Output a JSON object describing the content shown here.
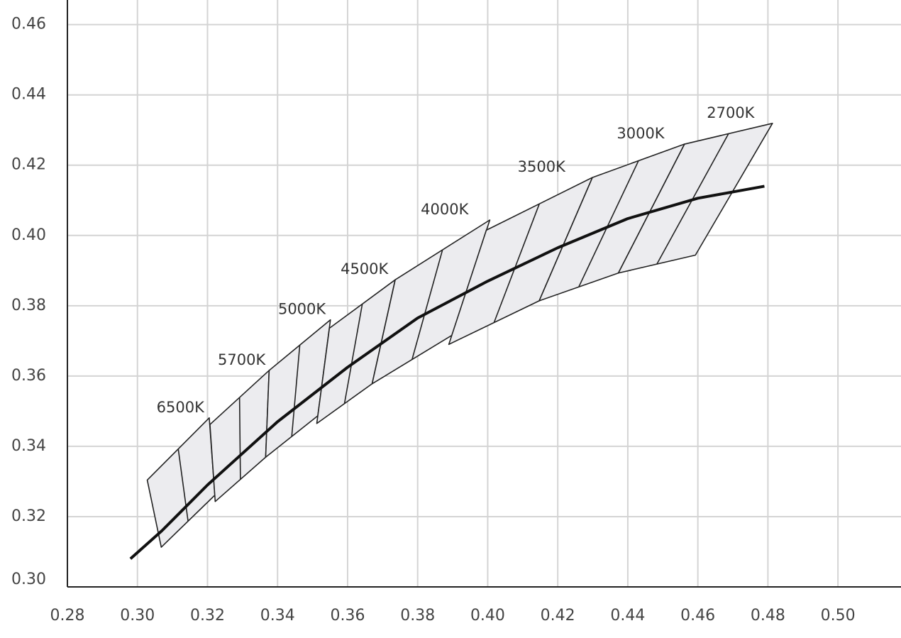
{
  "chart_data": {
    "type": "line",
    "x": [
      0.298,
      0.307,
      0.32,
      0.33,
      0.34,
      0.36,
      0.38,
      0.4,
      0.42,
      0.44,
      0.46,
      0.479
    ],
    "values": [
      0.308,
      0.316,
      0.329,
      0.338,
      0.347,
      0.3625,
      0.3765,
      0.387,
      0.3965,
      0.4048,
      0.4106,
      0.414
    ],
    "color": "#111111",
    "region_color": "#ececef",
    "regions": [
      {
        "label": "6500K",
        "x": [
          0.3205,
          0.3028,
          0.3068,
          0.3221
        ],
        "y": [
          0.3481,
          0.3304,
          0.3113,
          0.3261
        ]
      },
      {
        "label": "5700K",
        "x": [
          0.3376,
          0.3207,
          0.3222,
          0.3366
        ],
        "y": [
          0.3616,
          0.3462,
          0.3243,
          0.3369
        ]
      },
      {
        "label": "5000K",
        "x": [
          0.3551,
          0.3376,
          0.3366,
          0.3515
        ],
        "y": [
          0.376,
          0.3616,
          0.3369,
          0.3487
        ]
      },
      {
        "label": "4500K",
        "x": [
          0.3736,
          0.3548,
          0.3512,
          0.367
        ],
        "y": [
          0.3874,
          0.3736,
          0.3465,
          0.3578
        ]
      },
      {
        "label": "4000K",
        "x": [
          0.4006,
          0.3736,
          0.367,
          0.3898
        ],
        "y": [
          0.4044,
          0.3874,
          0.3578,
          0.3716
        ]
      },
      {
        "label": "3500K",
        "x": [
          0.4299,
          0.3996,
          0.3889,
          0.4147
        ],
        "y": [
          0.4165,
          0.4015,
          0.369,
          0.3814
        ]
      },
      {
        "label": "3000K",
        "x": [
          0.4562,
          0.4299,
          0.4147,
          0.4373
        ],
        "y": [
          0.426,
          0.4165,
          0.3814,
          0.3893
        ]
      },
      {
        "label": "2700K",
        "x": [
          0.4813,
          0.4562,
          0.4373,
          0.4593
        ],
        "y": [
          0.4319,
          0.426,
          0.3893,
          0.3944
        ]
      }
    ],
    "xlim": [
      0.28,
      0.518
    ],
    "ylim": [
      0.3,
      0.467
    ],
    "xticks": [
      0.28,
      {
        "value": 0.3,
        "label": "0.30"
      },
      0.32,
      0.34,
      0.36,
      0.38,
      {
        "value": 0.4,
        "label": "0.40"
      },
      0.42,
      0.44,
      0.46,
      0.48,
      {
        "value": 0.5,
        "label": "0.50"
      }
    ],
    "yticks": [
      {
        "value": 0.3,
        "label": "0.30"
      },
      0.32,
      0.34,
      0.36,
      0.38,
      {
        "value": 0.4,
        "label": "0.40"
      },
      0.42,
      0.44,
      0.46
    ],
    "grid": true
  }
}
